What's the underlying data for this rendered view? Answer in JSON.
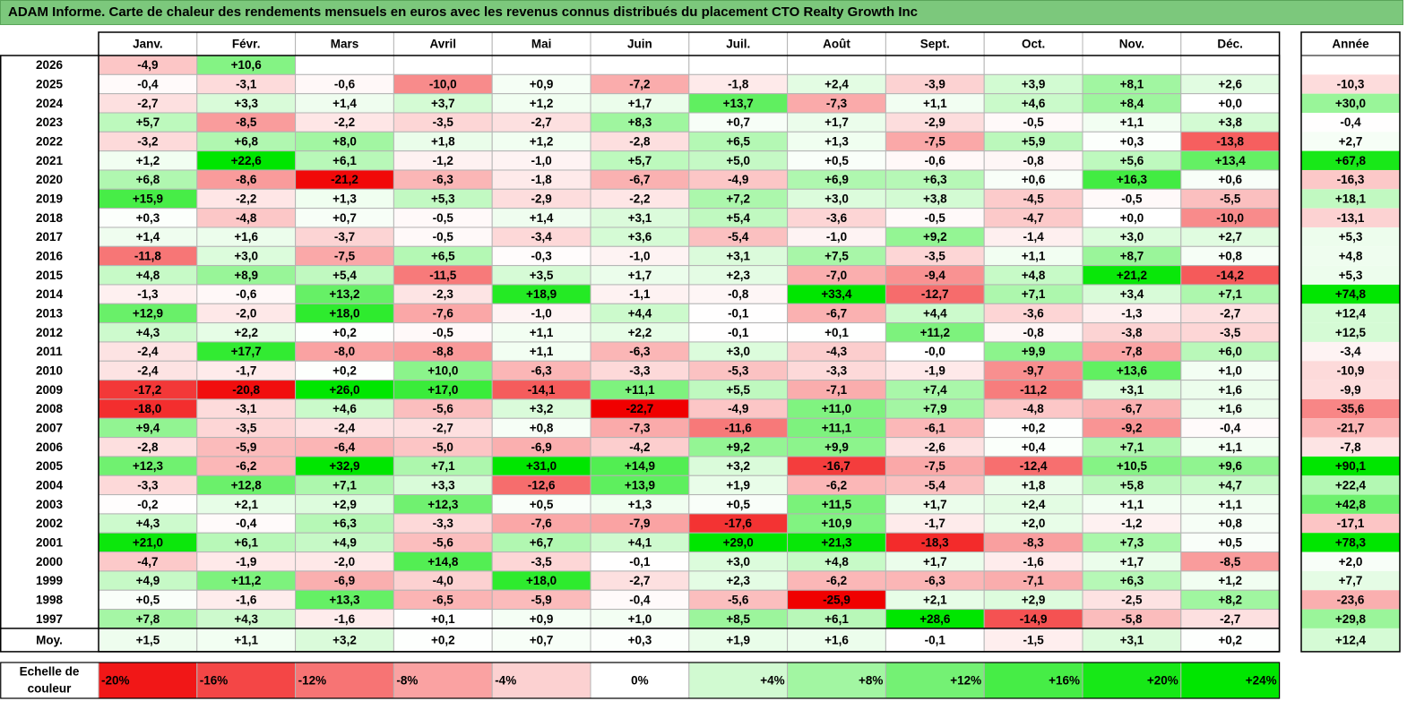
{
  "title": "ADAM Informe. Carte de chaleur des rendements mensuels en euros avec les revenus connus distribués du placement CTO Realty Growth Inc",
  "chart_data": {
    "type": "heatmap",
    "title": "ADAM Informe. Carte de chaleur des rendements mensuels en euros avec les revenus connus distribués du placement CTO Realty Growth Inc",
    "months": [
      "Janv.",
      "Févr.",
      "Mars",
      "Avril",
      "Mai",
      "Juin",
      "Juil.",
      "Août",
      "Sept.",
      "Oct.",
      "Nov.",
      "Déc."
    ],
    "year_header": "Année",
    "rows": [
      {
        "year": "2026",
        "m": [
          "-4,9",
          "+10,6",
          "",
          "",
          "",
          "",
          "",
          "",
          "",
          "",
          "",
          ""
        ],
        "y": ""
      },
      {
        "year": "2025",
        "m": [
          "-0,4",
          "-3,1",
          "-0,6",
          "-10,0",
          "+0,9",
          "-7,2",
          "-1,8",
          "+2,4",
          "-3,9",
          "+3,9",
          "+8,1",
          "+2,6"
        ],
        "y": "-10,3"
      },
      {
        "year": "2024",
        "m": [
          "-2,7",
          "+3,3",
          "+1,4",
          "+3,7",
          "+1,2",
          "+1,7",
          "+13,7",
          "-7,3",
          "+1,1",
          "+4,6",
          "+8,4",
          "+0,0"
        ],
        "y": "+30,0"
      },
      {
        "year": "2023",
        "m": [
          "+5,7",
          "-8,5",
          "-2,2",
          "-3,5",
          "-2,7",
          "+8,3",
          "+0,7",
          "+1,7",
          "-2,9",
          "-0,5",
          "+1,1",
          "+3,8"
        ],
        "y": "-0,4"
      },
      {
        "year": "2022",
        "m": [
          "-3,2",
          "+6,8",
          "+8,0",
          "+1,8",
          "+1,2",
          "-2,8",
          "+6,5",
          "+1,3",
          "-7,5",
          "+5,9",
          "+0,3",
          "-13,8"
        ],
        "y": "+2,7"
      },
      {
        "year": "2021",
        "m": [
          "+1,2",
          "+22,6",
          "+6,1",
          "-1,2",
          "-1,0",
          "+5,7",
          "+5,0",
          "+0,5",
          "-0,6",
          "-0,8",
          "+5,6",
          "+13,4"
        ],
        "y": "+67,8"
      },
      {
        "year": "2020",
        "m": [
          "+6,8",
          "-8,6",
          "-21,2",
          "-6,3",
          "-1,8",
          "-6,7",
          "-4,9",
          "+6,9",
          "+6,3",
          "+0,6",
          "+16,3",
          "+0,6"
        ],
        "y": "-16,3"
      },
      {
        "year": "2019",
        "m": [
          "+15,9",
          "-2,2",
          "+1,3",
          "+5,3",
          "-2,9",
          "-2,2",
          "+7,2",
          "+3,0",
          "+3,8",
          "-4,5",
          "-0,5",
          "-5,5"
        ],
        "y": "+18,1"
      },
      {
        "year": "2018",
        "m": [
          "+0,3",
          "-4,8",
          "+0,7",
          "-0,5",
          "+1,4",
          "+3,1",
          "+5,4",
          "-3,6",
          "-0,5",
          "-4,7",
          "+0,0",
          "-10,0"
        ],
        "y": "-13,1"
      },
      {
        "year": "2017",
        "m": [
          "+1,4",
          "+1,6",
          "-3,7",
          "-0,5",
          "-3,4",
          "+3,6",
          "-5,4",
          "-1,0",
          "+9,2",
          "-1,4",
          "+3,0",
          "+2,7"
        ],
        "y": "+5,3"
      },
      {
        "year": "2016",
        "m": [
          "-11,8",
          "+3,0",
          "-7,5",
          "+6,5",
          "-0,3",
          "-1,0",
          "+3,1",
          "+7,5",
          "-3,5",
          "+1,1",
          "+8,7",
          "+0,8"
        ],
        "y": "+4,8"
      },
      {
        "year": "2015",
        "m": [
          "+4,8",
          "+8,9",
          "+5,4",
          "-11,5",
          "+3,5",
          "+1,7",
          "+2,3",
          "-7,0",
          "-9,4",
          "+4,8",
          "+21,2",
          "-14,2"
        ],
        "y": "+5,3"
      },
      {
        "year": "2014",
        "m": [
          "-1,3",
          "-0,6",
          "+13,2",
          "-2,3",
          "+18,9",
          "-1,1",
          "-0,8",
          "+33,4",
          "-12,7",
          "+7,1",
          "+3,4",
          "+7,1"
        ],
        "y": "+74,8"
      },
      {
        "year": "2013",
        "m": [
          "+12,9",
          "-2,0",
          "+18,0",
          "-7,6",
          "-1,0",
          "+4,4",
          "-0,1",
          "-6,7",
          "+4,4",
          "-3,6",
          "-1,3",
          "-2,7"
        ],
        "y": "+12,4"
      },
      {
        "year": "2012",
        "m": [
          "+4,3",
          "+2,2",
          "+0,2",
          "-0,5",
          "+1,1",
          "+2,2",
          "-0,1",
          "+0,1",
          "+11,2",
          "-0,8",
          "-3,8",
          "-3,5"
        ],
        "y": "+12,5"
      },
      {
        "year": "2011",
        "m": [
          "-2,4",
          "+17,7",
          "-8,0",
          "-8,8",
          "+1,1",
          "-6,3",
          "+3,0",
          "-4,3",
          "-0,0",
          "+9,9",
          "-7,8",
          "+6,0"
        ],
        "y": "-3,4"
      },
      {
        "year": "2010",
        "m": [
          "-2,4",
          "-1,7",
          "+0,2",
          "+10,0",
          "-6,3",
          "-3,3",
          "-5,3",
          "-3,3",
          "-1,9",
          "-9,7",
          "+13,6",
          "+1,0"
        ],
        "y": "-10,9"
      },
      {
        "year": "2009",
        "m": [
          "-17,2",
          "-20,8",
          "+26,0",
          "+17,0",
          "-14,1",
          "+11,1",
          "+5,5",
          "-7,1",
          "+7,4",
          "-11,2",
          "+3,1",
          "+1,6"
        ],
        "y": "-9,9"
      },
      {
        "year": "2008",
        "m": [
          "-18,0",
          "-3,1",
          "+4,6",
          "-5,6",
          "+3,2",
          "-22,7",
          "-4,9",
          "+11,0",
          "+7,9",
          "-4,8",
          "-6,7",
          "+1,6"
        ],
        "y": "-35,6"
      },
      {
        "year": "2007",
        "m": [
          "+9,4",
          "-3,5",
          "-2,4",
          "-2,7",
          "+0,8",
          "-7,3",
          "-11,6",
          "+11,1",
          "-6,1",
          "+0,2",
          "-9,2",
          "-0,4"
        ],
        "y": "-21,7"
      },
      {
        "year": "2006",
        "m": [
          "-2,8",
          "-5,9",
          "-6,4",
          "-5,0",
          "-6,9",
          "-4,2",
          "+9,2",
          "+9,9",
          "-2,6",
          "+0,4",
          "+7,1",
          "+1,1"
        ],
        "y": "-7,8"
      },
      {
        "year": "2005",
        "m": [
          "+12,3",
          "-6,2",
          "+32,9",
          "+7,1",
          "+31,0",
          "+14,9",
          "+3,2",
          "-16,7",
          "-7,5",
          "-12,4",
          "+10,5",
          "+9,6"
        ],
        "y": "+90,1"
      },
      {
        "year": "2004",
        "m": [
          "-3,3",
          "+12,8",
          "+7,1",
          "+3,3",
          "-12,6",
          "+13,9",
          "+1,9",
          "-6,2",
          "-5,4",
          "+1,8",
          "+5,8",
          "+4,7"
        ],
        "y": "+22,4"
      },
      {
        "year": "2003",
        "m": [
          "-0,2",
          "+2,1",
          "+2,9",
          "+12,3",
          "+0,5",
          "+1,3",
          "+0,5",
          "+11,5",
          "+1,7",
          "+2,4",
          "+1,1",
          "+1,1"
        ],
        "y": "+42,8"
      },
      {
        "year": "2002",
        "m": [
          "+4,3",
          "-0,4",
          "+6,3",
          "-3,3",
          "-7,6",
          "-7,9",
          "-17,6",
          "+10,9",
          "-1,7",
          "+2,0",
          "-1,2",
          "+0,8"
        ],
        "y": "-17,1"
      },
      {
        "year": "2001",
        "m": [
          "+21,0",
          "+6,1",
          "+4,9",
          "-5,6",
          "+6,7",
          "+4,1",
          "+29,0",
          "+21,3",
          "-18,3",
          "-8,3",
          "+7,3",
          "+0,5"
        ],
        "y": "+78,3"
      },
      {
        "year": "2000",
        "m": [
          "-4,7",
          "-1,9",
          "-2,0",
          "+14,8",
          "-3,5",
          "-0,1",
          "+3,0",
          "+4,8",
          "+1,7",
          "-1,6",
          "+1,7",
          "-8,5"
        ],
        "y": "+2,0"
      },
      {
        "year": "1999",
        "m": [
          "+4,9",
          "+11,2",
          "-6,9",
          "-4,0",
          "+18,0",
          "-2,7",
          "+2,3",
          "-6,2",
          "-6,3",
          "-7,1",
          "+6,3",
          "+1,2"
        ],
        "y": "+7,7"
      },
      {
        "year": "1998",
        "m": [
          "+0,5",
          "-1,6",
          "+13,3",
          "-6,5",
          "-5,9",
          "-0,4",
          "-5,6",
          "-25,9",
          "+2,1",
          "+2,9",
          "-2,5",
          "+8,2"
        ],
        "y": "-23,6"
      },
      {
        "year": "1997",
        "m": [
          "+7,8",
          "+4,3",
          "-1,6",
          "+0,1",
          "+0,9",
          "+1,0",
          "+8,5",
          "+6,1",
          "+28,6",
          "-14,9",
          "-5,8",
          "-2,7"
        ],
        "y": "+29,8"
      }
    ],
    "average": {
      "label": "Moy.",
      "m": [
        "+1,5",
        "+1,1",
        "+3,2",
        "+0,2",
        "+0,7",
        "+0,3",
        "+1,9",
        "+1,6",
        "-0,1",
        "-1,5",
        "+3,1",
        "+0,2"
      ],
      "y": "+12,4"
    },
    "scale": {
      "label_line1": "Echelle de",
      "label_line2": "couleur",
      "steps": [
        "-20%",
        "-16%",
        "-12%",
        "-8%",
        "-4%",
        "0%",
        "+4%",
        "+8%",
        "+12%",
        "+16%",
        "+20%",
        "+24%"
      ],
      "values": [
        -20,
        -16,
        -12,
        -8,
        -4,
        0,
        4,
        8,
        12,
        16,
        20,
        24
      ]
    },
    "colors": {
      "negative": "#f00000",
      "neutral": "#ffffff",
      "positive": "#00e600",
      "title_bg": "#7cc87c",
      "grid": "#b4b4b4",
      "border": "#000000"
    }
  }
}
